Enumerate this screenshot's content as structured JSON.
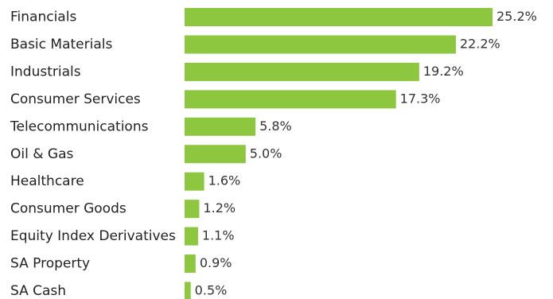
{
  "colors": {
    "bar": "#8dc63f",
    "text": "#222222",
    "value_text": "#333333",
    "background": "#ffffff"
  },
  "chart_data": {
    "type": "bar",
    "orientation": "horizontal",
    "categories": [
      "Financials",
      "Basic Materials",
      "Industrials",
      "Consumer Services",
      "Telecommunications",
      "Oil & Gas",
      "Healthcare",
      "Consumer Goods",
      "Equity Index Derivatives",
      "SA Property",
      "SA Cash"
    ],
    "values": [
      25.2,
      22.2,
      19.2,
      17.3,
      5.8,
      5.0,
      1.6,
      1.2,
      1.1,
      0.9,
      0.5
    ],
    "value_labels": [
      "25.2%",
      "22.2%",
      "19.2%",
      "17.3%",
      "5.8%",
      "5.0%",
      "1.6%",
      "1.2%",
      "1.1%",
      "0.9%",
      "0.5%"
    ],
    "title": "",
    "xlabel": "",
    "ylabel": "",
    "xlim": [
      0,
      25.2
    ],
    "grid": false,
    "legend": "none"
  }
}
